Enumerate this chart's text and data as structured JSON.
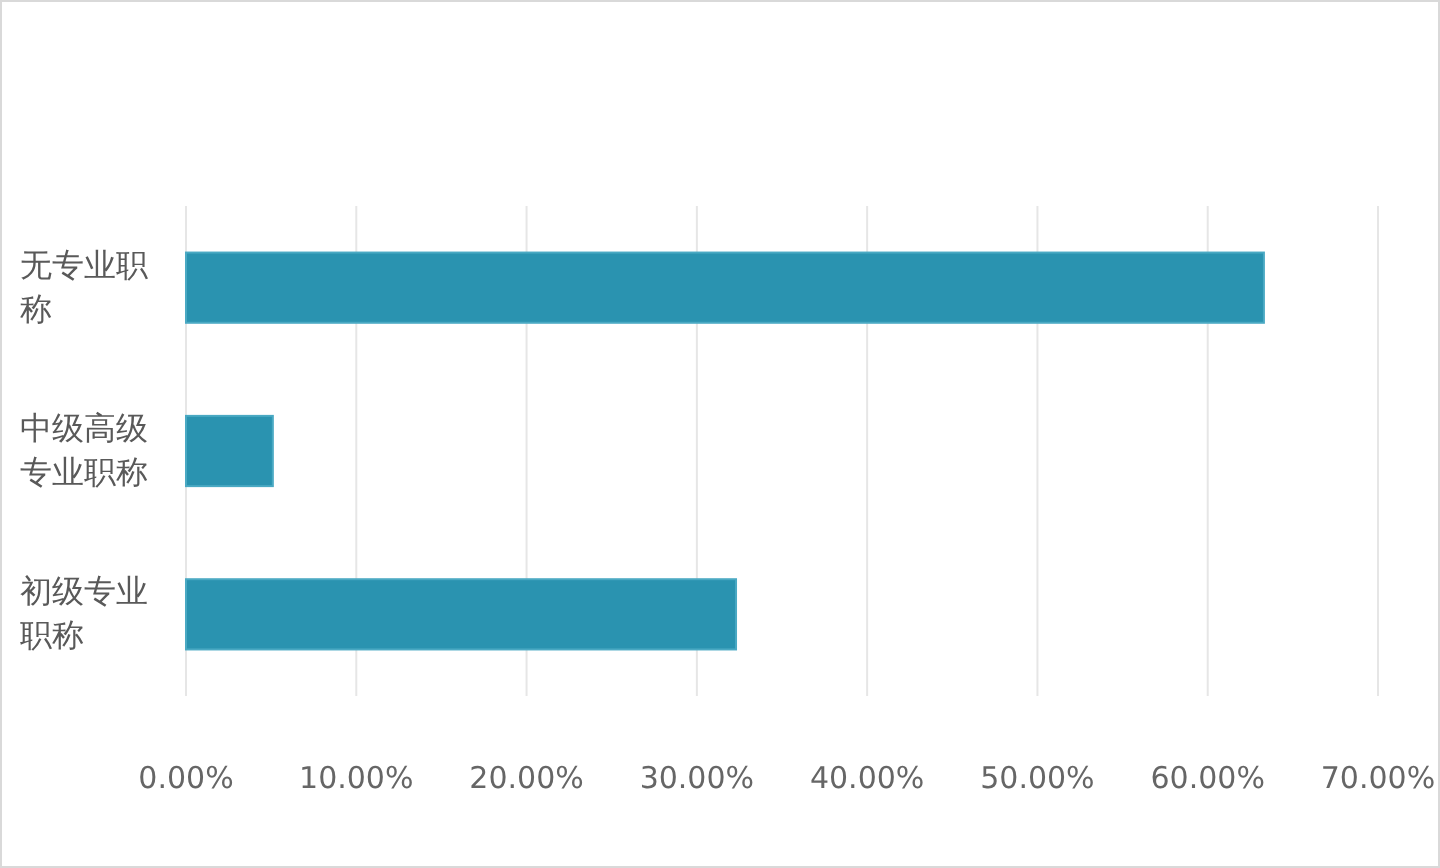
{
  "chart_data": {
    "type": "bar",
    "orientation": "horizontal",
    "categories": [
      "无专业职称",
      "中级高级专业职称",
      "初级专业职称"
    ],
    "values": [
      63.3,
      5.1,
      32.3
    ],
    "color": "#2a93b0",
    "xlim": [
      0,
      70
    ],
    "xticks": [
      {
        "value": 0,
        "label": "0.00%"
      },
      {
        "value": 10,
        "label": "10.00%"
      },
      {
        "value": 20,
        "label": "20.00%"
      },
      {
        "value": 30,
        "label": "30.00%"
      },
      {
        "value": 40,
        "label": "40.00%"
      },
      {
        "value": 50,
        "label": "50.00%"
      },
      {
        "value": 60,
        "label": "60.00%"
      },
      {
        "value": 70,
        "label": "70.00%"
      }
    ],
    "grid": "x"
  }
}
